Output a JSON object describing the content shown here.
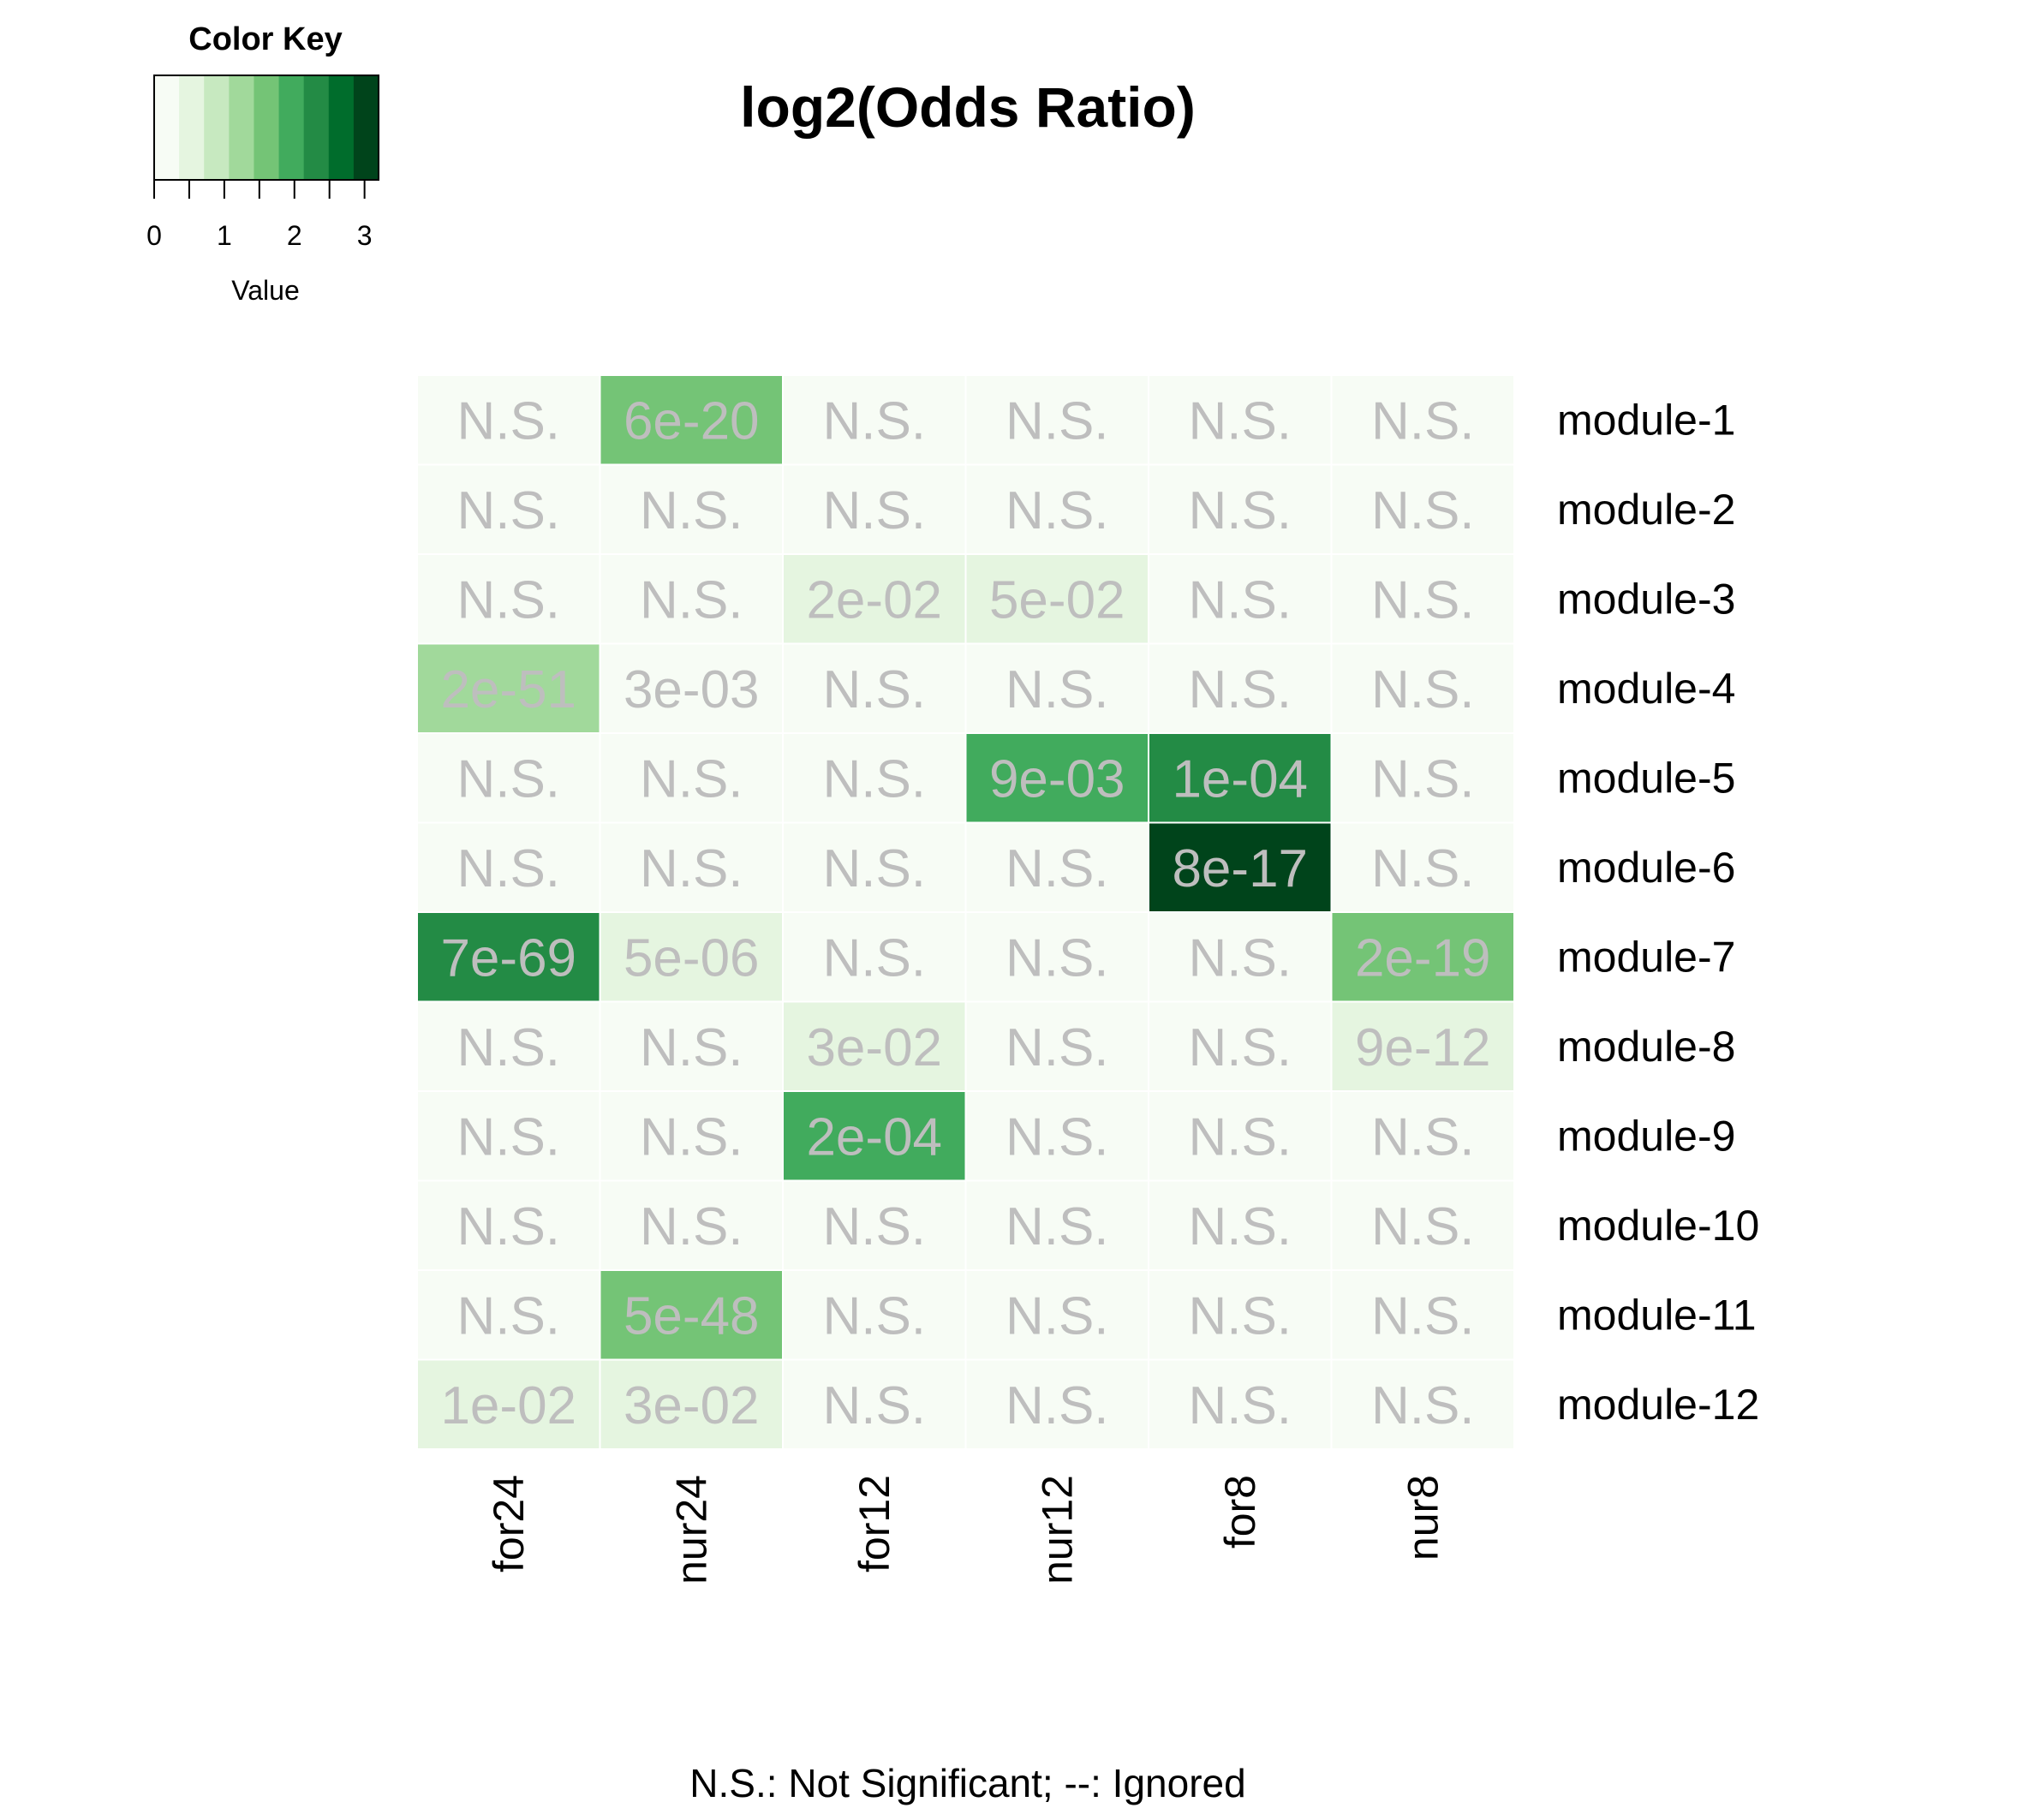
{
  "chart_data": {
    "type": "heatmap",
    "title": "log2(Odds Ratio)",
    "footnote": "N.S.: Not Significant; --: Ignored",
    "columns": [
      "for24",
      "nur24",
      "for12",
      "nur12",
      "for8",
      "nur8"
    ],
    "rows": [
      "module-1",
      "module-2",
      "module-3",
      "module-4",
      "module-5",
      "module-6",
      "module-7",
      "module-8",
      "module-9",
      "module-10",
      "module-11",
      "module-12"
    ],
    "values": [
      [
        0,
        1.5,
        0,
        0,
        0,
        0
      ],
      [
        0,
        0,
        0,
        0,
        0,
        0
      ],
      [
        0,
        0,
        0.7,
        0.7,
        0,
        0
      ],
      [
        1.1,
        0,
        0,
        0,
        0,
        0
      ],
      [
        0,
        0,
        0,
        2.0,
        2.4,
        0
      ],
      [
        0,
        0,
        0,
        0,
        3.1,
        0
      ],
      [
        2.4,
        0.7,
        0,
        0,
        0,
        1.5
      ],
      [
        0,
        0,
        0.4,
        0,
        0,
        0.7
      ],
      [
        0,
        0,
        2.0,
        0,
        0,
        0
      ],
      [
        0,
        0,
        0,
        0,
        0,
        0
      ],
      [
        0,
        1.5,
        0,
        0,
        0,
        0
      ],
      [
        0.7,
        0.7,
        0,
        0,
        0,
        0
      ]
    ],
    "cell_labels": [
      [
        "N.S.",
        "6e-20",
        "N.S.",
        "N.S.",
        "N.S.",
        "N.S."
      ],
      [
        "N.S.",
        "N.S.",
        "N.S.",
        "N.S.",
        "N.S.",
        "N.S."
      ],
      [
        "N.S.",
        "N.S.",
        "2e-02",
        "5e-02",
        "N.S.",
        "N.S."
      ],
      [
        "2e-51",
        "3e-03",
        "N.S.",
        "N.S.",
        "N.S.",
        "N.S."
      ],
      [
        "N.S.",
        "N.S.",
        "N.S.",
        "9e-03",
        "1e-04",
        "N.S."
      ],
      [
        "N.S.",
        "N.S.",
        "N.S.",
        "N.S.",
        "8e-17",
        "N.S."
      ],
      [
        "7e-69",
        "5e-06",
        "N.S.",
        "N.S.",
        "N.S.",
        "2e-19"
      ],
      [
        "N.S.",
        "N.S.",
        "3e-02",
        "N.S.",
        "N.S.",
        "9e-12"
      ],
      [
        "N.S.",
        "N.S.",
        "2e-04",
        "N.S.",
        "N.S.",
        "N.S."
      ],
      [
        "N.S.",
        "N.S.",
        "N.S.",
        "N.S.",
        "N.S.",
        "N.S."
      ],
      [
        "N.S.",
        "5e-48",
        "N.S.",
        "N.S.",
        "N.S.",
        "N.S."
      ],
      [
        "1e-02",
        "3e-02",
        "N.S.",
        "N.S.",
        "N.S.",
        "N.S."
      ]
    ],
    "color_key": {
      "title": "Color Key",
      "xlabel": "Value",
      "range": [
        0,
        3.2
      ],
      "ticks": [
        0,
        1,
        2,
        3
      ],
      "colors": [
        "#f7fcf5",
        "#e5f5e0",
        "#c7e9c0",
        "#a1d99b",
        "#74c476",
        "#41ab5d",
        "#238b45",
        "#006d2c",
        "#00441b"
      ]
    },
    "cell_label_color": "#bebebe",
    "grid_line_color": "#ffffff"
  }
}
